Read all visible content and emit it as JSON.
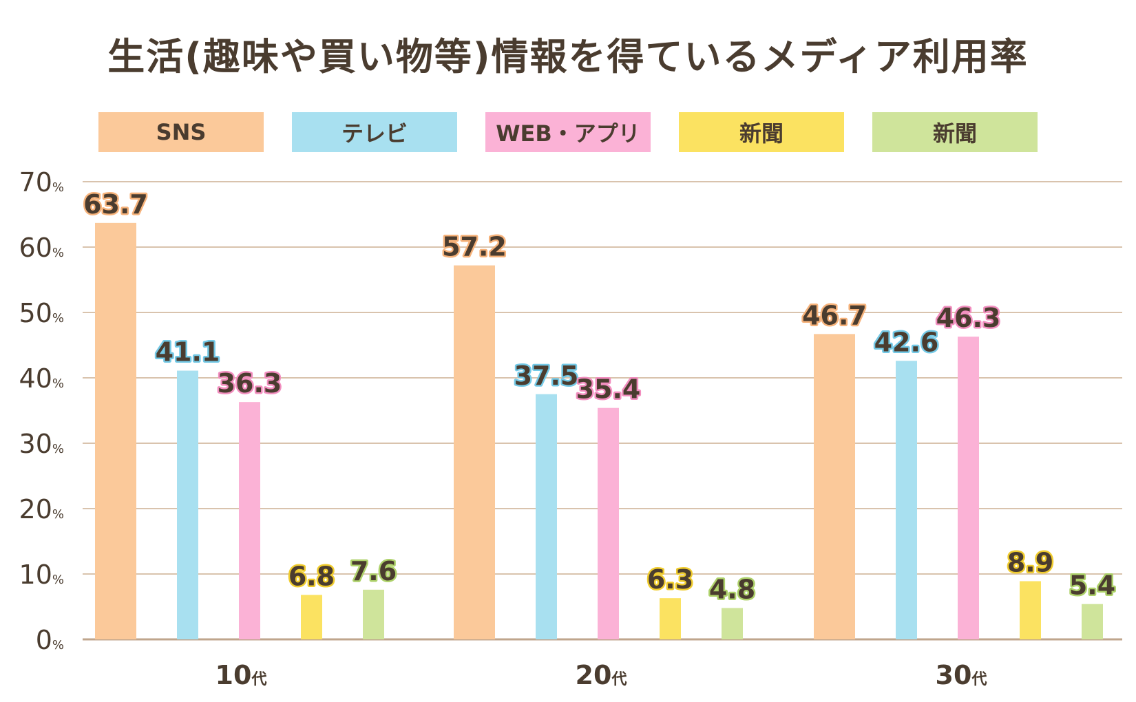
{
  "chart_data": {
    "type": "bar",
    "title": "生活(趣味や買い物等)情報を得ているメディア利用率",
    "categories": [
      "10代",
      "20代",
      "30代"
    ],
    "category_numbers": [
      "10",
      "20",
      "30"
    ],
    "category_suffix": "代",
    "series": [
      {
        "name": "SNS",
        "color": "#fbc99a",
        "outline": "#f6b27a",
        "values": [
          63.7,
          57.2,
          46.7
        ]
      },
      {
        "name": "テレビ",
        "color": "#a8e0f0",
        "outline": "#74c9e6",
        "values": [
          41.1,
          37.5,
          42.6
        ]
      },
      {
        "name": "WEB・アプリ",
        "color": "#fbb2d6",
        "outline": "#f28ebf",
        "values": [
          36.3,
          35.4,
          46.3
        ]
      },
      {
        "name": "新聞",
        "color": "#fbe261",
        "outline": "#f0cc2e",
        "values": [
          6.8,
          6.3,
          8.9
        ]
      },
      {
        "name": "新聞",
        "color": "#cfe49b",
        "outline": "#aed26b",
        "values": [
          7.6,
          4.8,
          5.4
        ]
      }
    ],
    "ylim": [
      0,
      70
    ],
    "yticks": [
      0,
      10,
      20,
      30,
      40,
      50,
      60,
      70
    ],
    "y_unit": "%",
    "legend": "top",
    "grid": true,
    "grid_color": "#d9c3ad",
    "axis_color": "#bfa58c",
    "text_color": "#4a3c2f"
  }
}
